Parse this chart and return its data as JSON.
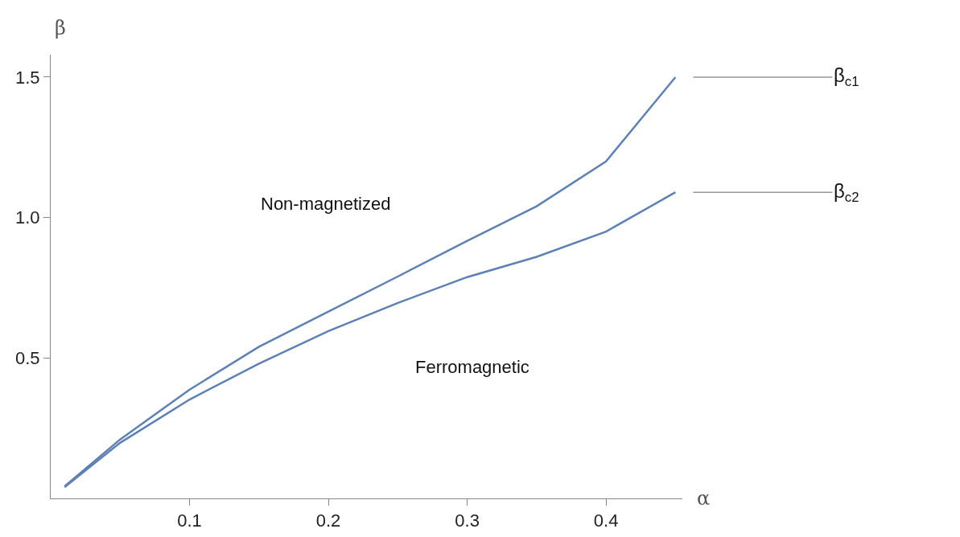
{
  "chart_data": {
    "type": "line",
    "xlabel": "α",
    "ylabel": "β",
    "x": [
      0.01,
      0.05,
      0.1,
      0.15,
      0.2,
      0.25,
      0.3,
      0.35,
      0.4,
      0.45
    ],
    "series": [
      {
        "color": "#5e81b5",
        "values": [
          0.043,
          0.21,
          0.387,
          0.54,
          0.665,
          0.79,
          0.917,
          1.04,
          1.2,
          1.5
        ]
      },
      {
        "color": "#5e81b5",
        "values": [
          0.04,
          0.198,
          0.352,
          0.48,
          0.596,
          0.696,
          0.788,
          0.86,
          0.95,
          1.09
        ]
      }
    ],
    "xlim": [
      0,
      0.455
    ],
    "ylim": [
      0,
      1.58
    ],
    "xticks": [
      0.1,
      0.2,
      0.3,
      0.4
    ],
    "yticks": [
      0.5,
      {
        "value": 1,
        "label": "1.0"
      },
      1.5
    ],
    "annotations": [
      "Non-magnetized",
      "Ferromagnetic",
      {
        "text": "β$_{c1}$",
        "x": 0.45,
        "y": 1.5
      },
      {
        "text": "β$_{c2}$",
        "x": 0.45,
        "y": 1.09
      }
    ],
    "grid": false,
    "marker": "none",
    "line_style": "solid"
  }
}
